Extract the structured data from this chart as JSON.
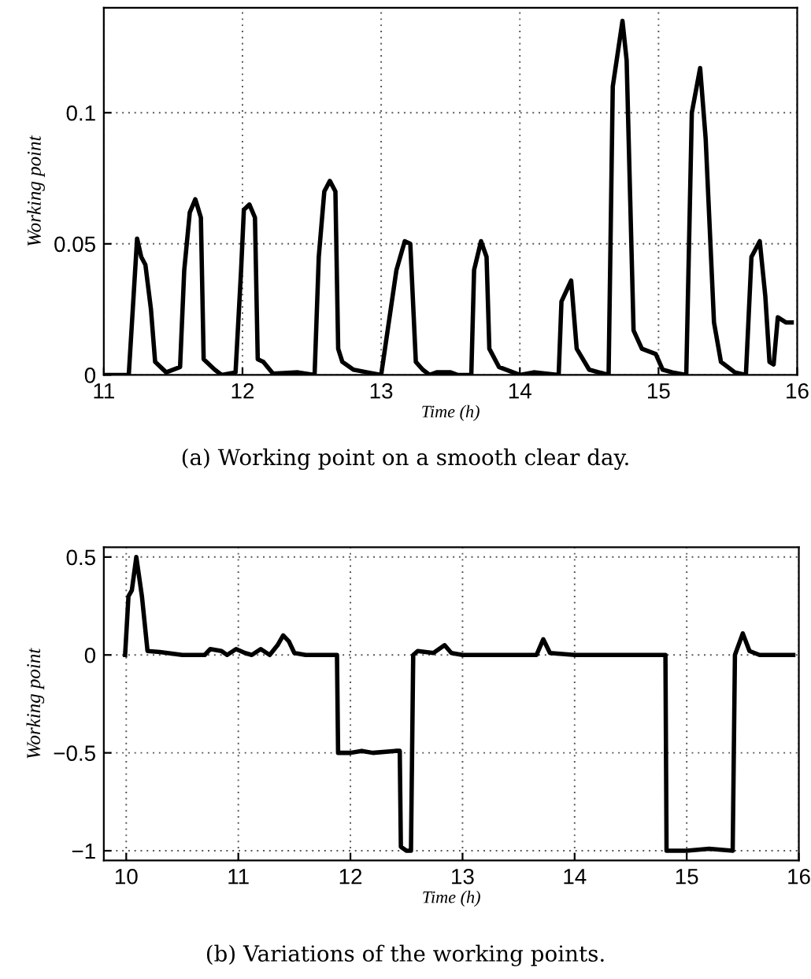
{
  "chart_data": [
    {
      "type": "line",
      "xlabel": "Time (h)",
      "ylabel": "Working point",
      "xlim": [
        11,
        16
      ],
      "ylim": [
        0,
        0.14
      ],
      "xticks": [
        11,
        12,
        13,
        14,
        15,
        16
      ],
      "yticks": [
        0,
        0.05,
        0.1
      ],
      "grid": true,
      "annotations": [
        "(a) Working point on a smooth clear day."
      ],
      "series": [
        {
          "color": "#000000",
          "x": [
            11.0,
            11.18,
            11.24,
            11.27,
            11.3,
            11.34,
            11.37,
            11.45,
            11.55,
            11.58,
            11.62,
            11.66,
            11.7,
            11.72,
            11.8,
            11.85,
            11.95,
            11.99,
            12.01,
            12.05,
            12.09,
            12.11,
            12.15,
            12.22,
            12.4,
            12.52,
            12.55,
            12.59,
            12.63,
            12.67,
            12.69,
            12.72,
            12.8,
            12.9,
            13.0,
            13.11,
            13.17,
            13.21,
            13.25,
            13.3,
            13.35,
            13.4,
            13.5,
            13.55,
            13.65,
            13.67,
            13.72,
            13.76,
            13.78,
            13.85,
            14.0,
            14.1,
            14.28,
            14.3,
            14.37,
            14.41,
            14.5,
            14.64,
            14.67,
            14.74,
            14.77,
            14.82,
            14.88,
            14.98,
            15.03,
            15.1,
            15.2,
            15.24,
            15.3,
            15.34,
            15.4,
            15.45,
            15.55,
            15.63,
            15.67,
            15.73,
            15.77,
            15.8,
            15.83,
            15.86,
            15.92,
            15.96
          ],
          "values": [
            0,
            0,
            0.052,
            0.045,
            0.042,
            0.025,
            0.005,
            0.001,
            0.003,
            0.04,
            0.062,
            0.067,
            0.06,
            0.006,
            0.002,
            0,
            0.001,
            0.04,
            0.063,
            0.065,
            0.06,
            0.006,
            0.005,
            0.0005,
            0.001,
            0,
            0.045,
            0.07,
            0.074,
            0.07,
            0.01,
            0.005,
            0.002,
            0.001,
            0,
            0.04,
            0.051,
            0.05,
            0.005,
            0.002,
            0,
            0.001,
            0.001,
            0,
            0,
            0.04,
            0.051,
            0.045,
            0.01,
            0.003,
            0,
            0.001,
            0,
            0.028,
            0.036,
            0.01,
            0.002,
            0,
            0.11,
            0.135,
            0.12,
            0.017,
            0.01,
            0.008,
            0.002,
            0.001,
            0,
            0.1,
            0.117,
            0.09,
            0.02,
            0.005,
            0.001,
            0,
            0.045,
            0.051,
            0.03,
            0.005,
            0.004,
            0.022,
            0.02,
            0.02
          ]
        }
      ]
    },
    {
      "type": "line",
      "xlabel": "Time (h)",
      "ylabel": "Working point",
      "xlim": [
        9.8,
        16
      ],
      "ylim": [
        -1.05,
        0.55
      ],
      "xticks": [
        10,
        11,
        12,
        13,
        14,
        15,
        16
      ],
      "yticks": [
        0.5,
        0,
        {
          "value": -0.5,
          "label": "−0.5"
        },
        {
          "value": -1,
          "label": "−1"
        }
      ],
      "grid": true,
      "annotations": [
        "(b) Variations of the working points."
      ],
      "series": [
        {
          "color": "#000000",
          "x": [
            9.99,
            10.02,
            10.05,
            10.09,
            10.14,
            10.19,
            10.3,
            10.5,
            10.7,
            10.75,
            10.85,
            10.9,
            10.98,
            11.06,
            11.12,
            11.2,
            11.28,
            11.35,
            11.4,
            11.45,
            11.5,
            11.6,
            11.88,
            11.89,
            12.0,
            12.1,
            12.2,
            12.4,
            12.44,
            12.45,
            12.5,
            12.54,
            12.56,
            12.6,
            12.74,
            12.84,
            12.9,
            13.0,
            13.5,
            13.66,
            13.72,
            13.78,
            14.0,
            14.81,
            14.82,
            15.0,
            15.2,
            15.41,
            15.43,
            15.5,
            15.56,
            15.65,
            15.95
          ],
          "values": [
            0,
            0.3,
            0.33,
            0.5,
            0.3,
            0.02,
            0.015,
            0,
            0,
            0.03,
            0.02,
            0,
            0.03,
            0.01,
            0,
            0.03,
            0,
            0.05,
            0.1,
            0.07,
            0.01,
            0,
            0,
            -0.5,
            -0.5,
            -0.49,
            -0.5,
            -0.49,
            -0.49,
            -0.98,
            -1.0,
            -1.0,
            0,
            0.02,
            0.01,
            0.05,
            0.01,
            0,
            0,
            0,
            0.08,
            0.01,
            0,
            0,
            -1.0,
            -1.0,
            -0.99,
            -1.0,
            0,
            0.11,
            0.02,
            0,
            0
          ]
        }
      ]
    }
  ]
}
